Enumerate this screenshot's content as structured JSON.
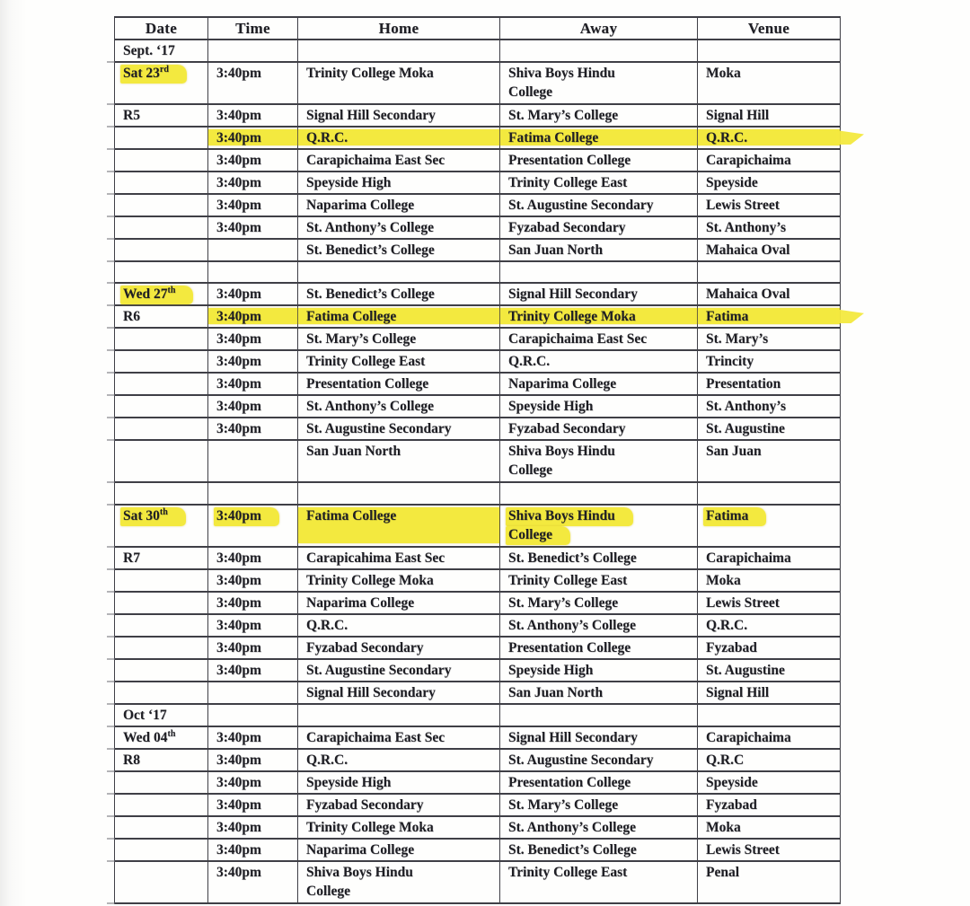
{
  "colors": {
    "highlight": "#f3e93f",
    "ink": "#1e1e24",
    "border": "#3f3f46"
  },
  "table": {
    "columns": [
      {
        "key": "date",
        "label": "Date"
      },
      {
        "key": "time",
        "label": "Time"
      },
      {
        "key": "home",
        "label": "Home"
      },
      {
        "key": "away",
        "label": "Away"
      },
      {
        "key": "venue",
        "label": "Venue"
      }
    ],
    "rows": [
      {
        "double": false,
        "cells": [
          {
            "text": "Sept. ‘17"
          },
          {
            "text": ""
          },
          {
            "text": ""
          },
          {
            "text": ""
          },
          {
            "text": ""
          }
        ]
      },
      {
        "double": true,
        "cells": [
          {
            "text": "Sat 23",
            "sup": "rd",
            "hl": "text"
          },
          {
            "text": "3:40pm"
          },
          {
            "text": "Trinity College Moka"
          },
          {
            "text": "Shiva Boys Hindu\nCollege"
          },
          {
            "text": "Moka"
          }
        ]
      },
      {
        "double": false,
        "cells": [
          {
            "text": "R5"
          },
          {
            "text": "3:40pm"
          },
          {
            "text": "Signal Hill Secondary"
          },
          {
            "text": "St. Mary’s College"
          },
          {
            "text": "Signal Hill"
          }
        ]
      },
      {
        "double": false,
        "cells": [
          {
            "text": ""
          },
          {
            "text": "3:40pm",
            "hl": "full"
          },
          {
            "text": "Q.R.C.",
            "hl": "full"
          },
          {
            "text": "Fatima College",
            "hl": "full"
          },
          {
            "text": "Q.R.C.",
            "hl": "arrow"
          }
        ]
      },
      {
        "double": false,
        "cells": [
          {
            "text": ""
          },
          {
            "text": "3:40pm"
          },
          {
            "text": "Carapichaima East Sec"
          },
          {
            "text": "Presentation College"
          },
          {
            "text": "Carapichaima"
          }
        ]
      },
      {
        "double": false,
        "cells": [
          {
            "text": ""
          },
          {
            "text": "3:40pm"
          },
          {
            "text": "Speyside High"
          },
          {
            "text": "Trinity College East"
          },
          {
            "text": "Speyside"
          }
        ]
      },
      {
        "double": false,
        "cells": [
          {
            "text": ""
          },
          {
            "text": "3:40pm"
          },
          {
            "text": "Naparima College"
          },
          {
            "text": "St. Augustine Secondary"
          },
          {
            "text": "Lewis Street"
          }
        ]
      },
      {
        "double": false,
        "cells": [
          {
            "text": ""
          },
          {
            "text": "3:40pm"
          },
          {
            "text": "St. Anthony’s College"
          },
          {
            "text": "Fyzabad Secondary"
          },
          {
            "text": "St. Anthony’s"
          }
        ]
      },
      {
        "double": false,
        "cells": [
          {
            "text": ""
          },
          {
            "text": ""
          },
          {
            "text": "St. Benedict’s College"
          },
          {
            "text": "San Juan North"
          },
          {
            "text": "Mahaica Oval"
          }
        ]
      },
      {
        "double": false,
        "cells": [
          {
            "text": ""
          },
          {
            "text": ""
          },
          {
            "text": ""
          },
          {
            "text": ""
          },
          {
            "text": ""
          }
        ]
      },
      {
        "double": false,
        "cells": [
          {
            "text": "Wed 27",
            "sup": "th",
            "hl": "text"
          },
          {
            "text": "3:40pm"
          },
          {
            "text": "St. Benedict’s College"
          },
          {
            "text": "Signal Hill Secondary"
          },
          {
            "text": "Mahaica Oval"
          }
        ]
      },
      {
        "double": false,
        "cells": [
          {
            "text": "R6"
          },
          {
            "text": "3:40pm",
            "hl": "full"
          },
          {
            "text": "Fatima College",
            "hl": "full"
          },
          {
            "text": "Trinity College Moka",
            "hl": "full"
          },
          {
            "text": "Fatima",
            "hl": "arrow"
          }
        ]
      },
      {
        "double": false,
        "cells": [
          {
            "text": ""
          },
          {
            "text": "3:40pm"
          },
          {
            "text": "St. Mary’s College"
          },
          {
            "text": "Carapichaima East Sec"
          },
          {
            "text": "St. Mary’s"
          }
        ]
      },
      {
        "double": false,
        "cells": [
          {
            "text": ""
          },
          {
            "text": "3:40pm"
          },
          {
            "text": "Trinity College East"
          },
          {
            "text": "Q.R.C."
          },
          {
            "text": "Trincity"
          }
        ]
      },
      {
        "double": false,
        "cells": [
          {
            "text": ""
          },
          {
            "text": "3:40pm"
          },
          {
            "text": "Presentation College"
          },
          {
            "text": "Naparima College"
          },
          {
            "text": "Presentation"
          }
        ]
      },
      {
        "double": false,
        "cells": [
          {
            "text": ""
          },
          {
            "text": "3:40pm"
          },
          {
            "text": "St. Anthony’s College"
          },
          {
            "text": "Speyside High"
          },
          {
            "text": "St. Anthony’s"
          }
        ]
      },
      {
        "double": false,
        "cells": [
          {
            "text": ""
          },
          {
            "text": "3:40pm"
          },
          {
            "text": "St. Augustine Secondary"
          },
          {
            "text": "Fyzabad Secondary"
          },
          {
            "text": "St. Augustine"
          }
        ]
      },
      {
        "double": true,
        "cells": [
          {
            "text": ""
          },
          {
            "text": ""
          },
          {
            "text": "San Juan North"
          },
          {
            "text": "Shiva Boys Hindu\nCollege"
          },
          {
            "text": "San Juan"
          }
        ]
      },
      {
        "double": false,
        "cells": [
          {
            "text": ""
          },
          {
            "text": ""
          },
          {
            "text": ""
          },
          {
            "text": ""
          },
          {
            "text": ""
          }
        ]
      },
      {
        "double": true,
        "cells": [
          {
            "text": "Sat 30",
            "sup": "th",
            "hl": "text"
          },
          {
            "text": "3:40pm",
            "hl": "text"
          },
          {
            "text": "Fatima College",
            "hl": "full"
          },
          {
            "text": "Shiva Boys Hindu\nCollege",
            "hl": "text"
          },
          {
            "text": "Fatima",
            "hl": "text"
          }
        ]
      },
      {
        "double": false,
        "cells": [
          {
            "text": "R7"
          },
          {
            "text": "3:40pm"
          },
          {
            "text": "Carapicahima East Sec"
          },
          {
            "text": "St. Benedict’s College"
          },
          {
            "text": "Carapichaima"
          }
        ]
      },
      {
        "double": false,
        "cells": [
          {
            "text": ""
          },
          {
            "text": "3:40pm"
          },
          {
            "text": "Trinity College Moka"
          },
          {
            "text": "Trinity College East"
          },
          {
            "text": "Moka"
          }
        ]
      },
      {
        "double": false,
        "cells": [
          {
            "text": ""
          },
          {
            "text": "3:40pm"
          },
          {
            "text": "Naparima College"
          },
          {
            "text": "St. Mary’s College"
          },
          {
            "text": "Lewis Street"
          }
        ]
      },
      {
        "double": false,
        "cells": [
          {
            "text": ""
          },
          {
            "text": "3:40pm"
          },
          {
            "text": "Q.R.C."
          },
          {
            "text": "St. Anthony’s College"
          },
          {
            "text": "Q.R.C."
          }
        ]
      },
      {
        "double": false,
        "cells": [
          {
            "text": ""
          },
          {
            "text": "3:40pm"
          },
          {
            "text": "Fyzabad Secondary"
          },
          {
            "text": "Presentation College"
          },
          {
            "text": "Fyzabad"
          }
        ]
      },
      {
        "double": false,
        "cells": [
          {
            "text": ""
          },
          {
            "text": "3:40pm"
          },
          {
            "text": "St. Augustine Secondary"
          },
          {
            "text": "Speyside High"
          },
          {
            "text": "St. Augustine"
          }
        ]
      },
      {
        "double": false,
        "cells": [
          {
            "text": ""
          },
          {
            "text": ""
          },
          {
            "text": "Signal Hill Secondary"
          },
          {
            "text": "San Juan North"
          },
          {
            "text": "Signal Hill"
          }
        ]
      },
      {
        "double": false,
        "cells": [
          {
            "text": "Oct ‘17"
          },
          {
            "text": ""
          },
          {
            "text": ""
          },
          {
            "text": ""
          },
          {
            "text": ""
          }
        ]
      },
      {
        "double": false,
        "cells": [
          {
            "text": "Wed 04",
            "sup": "th"
          },
          {
            "text": "3:40pm"
          },
          {
            "text": "Carapichaima East Sec"
          },
          {
            "text": "Signal Hill Secondary"
          },
          {
            "text": "Carapichaima"
          }
        ]
      },
      {
        "double": false,
        "cells": [
          {
            "text": "R8"
          },
          {
            "text": "3:40pm"
          },
          {
            "text": "Q.R.C."
          },
          {
            "text": "St. Augustine Secondary"
          },
          {
            "text": "Q.R.C"
          }
        ]
      },
      {
        "double": false,
        "cells": [
          {
            "text": ""
          },
          {
            "text": "3:40pm"
          },
          {
            "text": "Speyside High"
          },
          {
            "text": "Presentation College"
          },
          {
            "text": "Speyside"
          }
        ]
      },
      {
        "double": false,
        "cells": [
          {
            "text": ""
          },
          {
            "text": "3:40pm"
          },
          {
            "text": "Fyzabad Secondary"
          },
          {
            "text": "St. Mary’s College"
          },
          {
            "text": "Fyzabad"
          }
        ]
      },
      {
        "double": false,
        "cells": [
          {
            "text": ""
          },
          {
            "text": "3:40pm"
          },
          {
            "text": "Trinity College Moka"
          },
          {
            "text": "St. Anthony’s College"
          },
          {
            "text": "Moka"
          }
        ]
      },
      {
        "double": false,
        "cells": [
          {
            "text": ""
          },
          {
            "text": "3:40pm"
          },
          {
            "text": "Naparima College"
          },
          {
            "text": "St. Benedict’s College"
          },
          {
            "text": "Lewis Street"
          }
        ]
      },
      {
        "double": true,
        "cells": [
          {
            "text": ""
          },
          {
            "text": "3:40pm"
          },
          {
            "text": "Shiva Boys Hindu\nCollege"
          },
          {
            "text": "Trinity College East"
          },
          {
            "text": "Penal"
          }
        ]
      }
    ]
  }
}
